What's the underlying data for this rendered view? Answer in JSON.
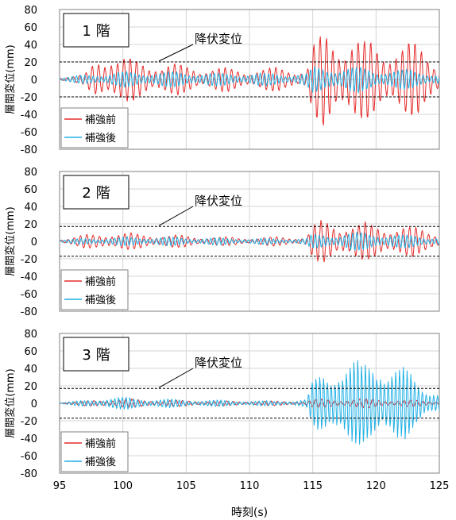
{
  "figure": {
    "xlabel": "時刻(s)"
  },
  "colors": {
    "before": "#e52b2b",
    "after": "#21b1e6",
    "grid": "#d4d4d4",
    "axis": "#808080",
    "yield_line": "#000000"
  },
  "chart_data": [
    {
      "type": "line",
      "panel_label": "1 階",
      "annotation": "降伏変位",
      "ylabel": "層間変位(mm)",
      "xlim": [
        95,
        125
      ],
      "ylim": [
        -80,
        80
      ],
      "xticks": [
        95,
        100,
        105,
        110,
        115,
        120,
        125
      ],
      "yticks": [
        80,
        60,
        40,
        20,
        0,
        -20,
        -40,
        -60,
        -80
      ],
      "yield_lines": [
        20,
        -20
      ],
      "grid": true,
      "legend": {
        "position": "bottom-left",
        "entries": [
          "補強前",
          "補強後"
        ]
      },
      "series": [
        {
          "name": "補強前",
          "color": "#e52b2b",
          "envelope": [
            [
              95,
              3
            ],
            [
              97,
              6
            ],
            [
              98,
              28
            ],
            [
              99,
              36
            ],
            [
              100,
              30
            ],
            [
              101,
              24
            ],
            [
              103,
              22
            ],
            [
              105,
              18
            ],
            [
              107,
              16
            ],
            [
              109,
              14
            ],
            [
              111,
              14
            ],
            [
              113,
              16
            ],
            [
              114.5,
              12
            ],
            [
              115,
              45
            ],
            [
              116,
              60
            ],
            [
              117,
              55
            ],
            [
              118,
              60
            ],
            [
              119,
              50
            ],
            [
              120,
              46
            ],
            [
              121,
              44
            ],
            [
              122,
              48
            ],
            [
              123,
              46
            ],
            [
              124,
              40
            ],
            [
              125,
              30
            ]
          ],
          "period": 0.5
        },
        {
          "name": "補強後",
          "color": "#21b1e6",
          "envelope": [
            [
              95,
              2
            ],
            [
              98,
              8
            ],
            [
              100,
              10
            ],
            [
              104,
              10
            ],
            [
              108,
              8
            ],
            [
              112,
              8
            ],
            [
              114.5,
              8
            ],
            [
              115,
              16
            ],
            [
              117,
              18
            ],
            [
              120,
              14
            ],
            [
              123,
              12
            ],
            [
              125,
              8
            ]
          ],
          "period": 0.33
        }
      ]
    },
    {
      "type": "line",
      "panel_label": "2 階",
      "annotation": "降伏変位",
      "ylabel": "層間変位(mm)",
      "xlim": [
        95,
        125
      ],
      "ylim": [
        -80,
        80
      ],
      "xticks": [
        95,
        100,
        105,
        110,
        115,
        120,
        125
      ],
      "yticks": [
        80,
        60,
        40,
        20,
        0,
        -20,
        -40,
        -60,
        -80
      ],
      "yield_lines": [
        17,
        -17
      ],
      "grid": true,
      "legend": {
        "position": "bottom-left",
        "entries": [
          "補強前",
          "補強後"
        ]
      },
      "series": [
        {
          "name": "補強前",
          "color": "#e52b2b",
          "envelope": [
            [
              95,
              3
            ],
            [
              97,
              8
            ],
            [
              99,
              12
            ],
            [
              101,
              10
            ],
            [
              104,
              8
            ],
            [
              107,
              6
            ],
            [
              110,
              5
            ],
            [
              113,
              6
            ],
            [
              114.5,
              6
            ],
            [
              115,
              22
            ],
            [
              116,
              26
            ],
            [
              118,
              24
            ],
            [
              120,
              22
            ],
            [
              122,
              20
            ],
            [
              125,
              14
            ]
          ],
          "period": 0.5
        },
        {
          "name": "補強後",
          "color": "#21b1e6",
          "envelope": [
            [
              95,
              2
            ],
            [
              98,
              5
            ],
            [
              102,
              6
            ],
            [
              106,
              5
            ],
            [
              110,
              4
            ],
            [
              114.5,
              4
            ],
            [
              115,
              9
            ],
            [
              118,
              12
            ],
            [
              121,
              10
            ],
            [
              125,
              6
            ]
          ],
          "period": 0.33
        }
      ]
    },
    {
      "type": "line",
      "panel_label": "3 階",
      "annotation": "降伏変位",
      "ylabel": "層間変位(mm)",
      "xlim": [
        95,
        125
      ],
      "ylim": [
        -80,
        80
      ],
      "xticks": [
        95,
        100,
        105,
        110,
        115,
        120,
        125
      ],
      "yticks": [
        80,
        60,
        40,
        20,
        0,
        -20,
        -40,
        -60,
        -80
      ],
      "yield_lines": [
        17,
        -17
      ],
      "grid": true,
      "legend": {
        "position": "bottom-left",
        "entries": [
          "補強前",
          "補強後"
        ]
      },
      "series": [
        {
          "name": "補強前",
          "color": "#e52b2b",
          "envelope": [
            [
              95,
              1
            ],
            [
              97,
              3
            ],
            [
              99,
              6
            ],
            [
              101,
              5
            ],
            [
              104,
              4
            ],
            [
              108,
              3
            ],
            [
              112,
              3
            ],
            [
              114.5,
              3
            ],
            [
              115,
              5
            ],
            [
              118,
              6
            ],
            [
              121,
              5
            ],
            [
              125,
              3
            ]
          ],
          "period": 0.5
        },
        {
          "name": "補強後",
          "color": "#21b1e6",
          "envelope": [
            [
              95,
              1
            ],
            [
              97,
              4
            ],
            [
              99,
              8
            ],
            [
              101,
              7
            ],
            [
              104,
              5
            ],
            [
              108,
              4
            ],
            [
              112,
              3
            ],
            [
              114.5,
              5
            ],
            [
              115,
              28
            ],
            [
              116,
              48
            ],
            [
              117,
              58
            ],
            [
              118,
              52
            ],
            [
              119,
              50
            ],
            [
              120,
              68
            ],
            [
              121,
              55
            ],
            [
              122,
              45
            ],
            [
              123,
              35
            ],
            [
              124,
              25
            ],
            [
              125,
              15
            ]
          ],
          "period": 0.3
        }
      ]
    }
  ]
}
